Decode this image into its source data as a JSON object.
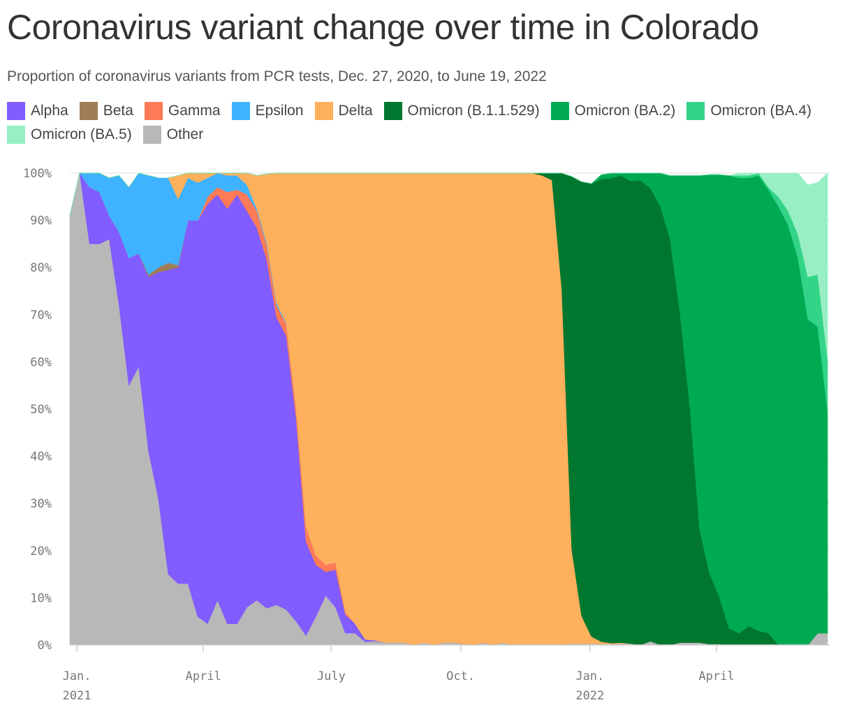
{
  "header": {
    "title": "Coronavirus variant change over time in Colorado",
    "subtitle": "Proportion of coronavirus variants from PCR tests, Dec. 27, 2020, to June 19, 2022"
  },
  "chart_data": {
    "type": "area",
    "stacked": true,
    "title": "Coronavirus variant change over time in Colorado",
    "subtitle": "Proportion of coronavirus variants from PCR tests, Dec. 27, 2020, to June 19, 2022",
    "xlabel": "",
    "ylabel": "",
    "ylim": [
      0,
      100
    ],
    "grid": true,
    "legend_position": "top",
    "x_ticks": [
      {
        "date": "2021-01-01",
        "label": "Jan.",
        "year": "2021"
      },
      {
        "date": "2021-04-01",
        "label": "April",
        "year": ""
      },
      {
        "date": "2021-07-01",
        "label": "July",
        "year": ""
      },
      {
        "date": "2021-10-01",
        "label": "Oct.",
        "year": ""
      },
      {
        "date": "2022-01-01",
        "label": "Jan.",
        "year": "2022"
      },
      {
        "date": "2022-04-01",
        "label": "April",
        "year": ""
      }
    ],
    "y_ticks": [
      {
        "value": 0,
        "label": "0%"
      },
      {
        "value": 10,
        "label": "10%"
      },
      {
        "value": 20,
        "label": "20%"
      },
      {
        "value": 30,
        "label": "30%"
      },
      {
        "value": 40,
        "label": "40%"
      },
      {
        "value": 50,
        "label": "50%"
      },
      {
        "value": 60,
        "label": "60%"
      },
      {
        "value": 70,
        "label": "70%"
      },
      {
        "value": 80,
        "label": "80%"
      },
      {
        "value": 90,
        "label": "90%"
      },
      {
        "value": 100,
        "label": "100%"
      }
    ],
    "x": [
      "2020-12-27",
      "2021-01-03",
      "2021-01-10",
      "2021-01-17",
      "2021-01-24",
      "2021-01-31",
      "2021-02-07",
      "2021-02-14",
      "2021-02-21",
      "2021-02-28",
      "2021-03-07",
      "2021-03-14",
      "2021-03-21",
      "2021-03-28",
      "2021-04-04",
      "2021-04-11",
      "2021-04-18",
      "2021-04-25",
      "2021-05-02",
      "2021-05-09",
      "2021-05-16",
      "2021-05-23",
      "2021-05-30",
      "2021-06-06",
      "2021-06-13",
      "2021-06-20",
      "2021-06-27",
      "2021-07-04",
      "2021-07-11",
      "2021-07-18",
      "2021-07-25",
      "2021-08-01",
      "2021-08-08",
      "2021-08-15",
      "2021-08-22",
      "2021-08-29",
      "2021-09-05",
      "2021-09-12",
      "2021-09-19",
      "2021-09-26",
      "2021-10-03",
      "2021-10-10",
      "2021-10-17",
      "2021-10-24",
      "2021-10-31",
      "2021-11-07",
      "2021-11-14",
      "2021-11-21",
      "2021-11-28",
      "2021-12-05",
      "2021-12-12",
      "2021-12-19",
      "2021-12-26",
      "2022-01-02",
      "2022-01-09",
      "2022-01-16",
      "2022-01-23",
      "2022-01-30",
      "2022-02-06",
      "2022-02-13",
      "2022-02-20",
      "2022-02-27",
      "2022-03-06",
      "2022-03-13",
      "2022-03-20",
      "2022-03-27",
      "2022-04-03",
      "2022-04-10",
      "2022-04-17",
      "2022-04-24",
      "2022-05-01",
      "2022-05-08",
      "2022-05-15",
      "2022-05-22",
      "2022-05-29",
      "2022-06-05",
      "2022-06-12",
      "2022-06-19"
    ],
    "series": [
      {
        "name": "Other",
        "color": "#b8b8b8",
        "values": [
          91,
          100,
          85,
          85,
          86,
          72,
          55,
          59,
          41,
          31,
          15,
          13,
          13,
          6,
          4.5,
          9.5,
          4.5,
          4.5,
          8,
          9.5,
          7.8,
          8.5,
          7.5,
          5,
          2,
          6,
          10.5,
          8,
          2.5,
          2.5,
          0.7,
          0.8,
          0.5,
          0.5,
          0.5,
          0,
          0.5,
          0,
          0.5,
          0.5,
          0.2,
          0,
          0.5,
          0,
          0.5,
          0,
          0,
          0,
          0,
          0,
          0.1,
          0.3,
          0.2,
          0.3,
          0.2,
          0.2,
          0.3,
          0.3,
          0,
          0.8,
          0,
          0,
          0.5,
          0.5,
          0.5,
          0.2,
          0.2,
          0,
          0,
          0,
          0,
          0,
          0,
          0,
          0,
          0,
          2.5,
          2.5
        ]
      },
      {
        "name": "Alpha",
        "color": "#815cff",
        "values": [
          0,
          0,
          12,
          11,
          5,
          15.5,
          27,
          24,
          37,
          48,
          64.5,
          67,
          77,
          84,
          89,
          86,
          88,
          91,
          84,
          79,
          74,
          61,
          58,
          43,
          20,
          11,
          5,
          8,
          4,
          2,
          0.5,
          0.2,
          0,
          0,
          0,
          0,
          0,
          0,
          0,
          0,
          0,
          0,
          0,
          0,
          0,
          0,
          0,
          0,
          0,
          0,
          0,
          0,
          0,
          0,
          0,
          0,
          0,
          0,
          0,
          0,
          0,
          0,
          0,
          0,
          0,
          0,
          0,
          0,
          0,
          0,
          0,
          0,
          0,
          0,
          0,
          0,
          0,
          0
        ]
      },
      {
        "name": "Beta",
        "color": "#a07c58",
        "values": [
          0,
          0,
          0,
          0,
          0,
          0,
          0,
          0,
          0.5,
          1,
          1.5,
          0.5,
          0,
          0,
          0,
          0,
          0,
          0,
          0,
          0,
          0,
          0,
          0,
          0,
          0,
          0,
          0,
          0,
          0,
          0,
          0,
          0,
          0,
          0,
          0,
          0,
          0,
          0,
          0,
          0,
          0,
          0,
          0,
          0,
          0,
          0,
          0,
          0,
          0,
          0,
          0,
          0,
          0,
          0,
          0,
          0,
          0,
          0,
          0,
          0,
          0,
          0,
          0,
          0,
          0,
          0,
          0,
          0,
          0,
          0,
          0,
          0,
          0,
          0,
          0,
          0,
          0,
          0
        ]
      },
      {
        "name": "Gamma",
        "color": "#ff7a57",
        "values": [
          0,
          0,
          0,
          0,
          0,
          0,
          0,
          0,
          0,
          0,
          0,
          0,
          0,
          0,
          1.5,
          1.5,
          3.5,
          1,
          3.5,
          3.5,
          3,
          2.5,
          2.5,
          2,
          3,
          2,
          1.5,
          1.5,
          0.5,
          0,
          0,
          0,
          0,
          0,
          0,
          0,
          0,
          0,
          0,
          0,
          0,
          0,
          0,
          0,
          0,
          0,
          0,
          0,
          0,
          0,
          0,
          0,
          0,
          0,
          0,
          0,
          0,
          0,
          0,
          0,
          0,
          0,
          0,
          0,
          0,
          0,
          0,
          0,
          0,
          0,
          0,
          0,
          0,
          0,
          0,
          0,
          0,
          0
        ]
      },
      {
        "name": "Epsilon",
        "color": "#3fb3ff",
        "values": [
          0,
          0,
          3,
          4,
          8,
          12,
          15,
          17,
          21,
          19,
          18,
          14,
          9,
          8,
          4,
          3,
          3.5,
          3,
          2,
          0.5,
          0.5,
          0.5,
          0.2,
          0,
          0,
          0,
          0,
          0,
          0,
          0,
          0,
          0,
          0,
          0,
          0,
          0,
          0,
          0,
          0,
          0,
          0,
          0,
          0,
          0,
          0,
          0,
          0,
          0,
          0,
          0,
          0,
          0,
          0,
          0,
          0,
          0,
          0,
          0,
          0,
          0,
          0,
          0,
          0,
          0,
          0,
          0,
          0,
          0,
          0,
          0,
          0,
          0,
          0,
          0,
          0,
          0,
          0,
          0
        ]
      },
      {
        "name": "Delta",
        "color": "#ffb05c",
        "values": [
          0,
          0,
          0,
          0,
          0,
          0,
          0,
          0,
          0,
          0,
          0,
          5,
          1,
          2,
          1,
          0,
          1,
          1,
          2.5,
          7,
          14.5,
          27.5,
          31.8,
          50,
          75,
          81,
          83,
          82.5,
          93,
          95.5,
          98.8,
          99,
          99.5,
          99.5,
          99.5,
          100,
          99.5,
          100,
          99.5,
          99.5,
          99.8,
          100,
          99.5,
          100,
          99.5,
          100,
          100,
          100,
          99.5,
          98.5,
          75,
          20,
          6,
          1.5,
          0.5,
          0.2,
          0.2,
          0,
          0,
          0,
          0,
          0,
          0,
          0,
          0,
          0,
          0,
          0,
          0,
          0,
          0,
          0,
          0,
          0,
          0,
          0,
          0,
          0
        ]
      },
      {
        "name": "Omicron (B.1.1.529)",
        "color": "#00772f",
        "values": [
          0,
          0,
          0,
          0,
          0,
          0,
          0,
          0,
          0,
          0,
          0,
          0,
          0,
          0,
          0,
          0,
          0,
          0,
          0,
          0,
          0,
          0,
          0,
          0,
          0,
          0,
          0,
          0,
          0,
          0,
          0,
          0,
          0,
          0,
          0,
          0,
          0,
          0,
          0,
          0,
          0,
          0,
          0,
          0,
          0,
          0,
          0,
          0,
          0.5,
          1.5,
          25,
          79,
          92,
          96,
          98,
          98.5,
          99,
          98,
          98.5,
          96,
          93,
          86,
          70,
          50,
          24,
          15,
          10,
          3.5,
          2.5,
          4,
          3,
          2.5,
          0,
          0,
          0,
          0,
          0,
          0
        ]
      },
      {
        "name": "Omicron (BA.2)",
        "color": "#00aa53",
        "values": [
          0,
          0,
          0,
          0,
          0,
          0,
          0,
          0,
          0,
          0,
          0,
          0,
          0,
          0,
          0,
          0,
          0,
          0,
          0,
          0,
          0,
          0,
          0,
          0,
          0,
          0,
          0,
          0,
          0,
          0,
          0,
          0,
          0,
          0,
          0,
          0,
          0,
          0,
          0,
          0,
          0,
          0,
          0,
          0,
          0,
          0,
          0,
          0,
          0,
          0,
          0,
          0,
          0,
          0,
          1,
          1.3,
          0.8,
          1.7,
          1.5,
          3.2,
          7,
          13.5,
          29,
          49,
          75,
          84.5,
          89.5,
          96,
          96.5,
          95,
          96.5,
          94,
          93,
          89,
          82,
          69,
          65,
          47
        ]
      },
      {
        "name": "Omicron (BA.4)",
        "color": "#33d487",
        "values": [
          0,
          0,
          0,
          0,
          0,
          0,
          0,
          0,
          0,
          0,
          0,
          0,
          0,
          0,
          0,
          0,
          0,
          0,
          0,
          0,
          0,
          0,
          0,
          0,
          0,
          0,
          0,
          0,
          0,
          0,
          0,
          0,
          0,
          0,
          0,
          0,
          0,
          0,
          0,
          0,
          0,
          0,
          0,
          0,
          0,
          0,
          0,
          0,
          0,
          0,
          0,
          0,
          0,
          0,
          0,
          0,
          0,
          0,
          0,
          0,
          0,
          0,
          0,
          0,
          0,
          0,
          0,
          0,
          0.5,
          0.5,
          0.5,
          0.5,
          2,
          3,
          5,
          9,
          11,
          11
        ]
      },
      {
        "name": "Omicron (BA.5)",
        "color": "#98efc3",
        "values": [
          0,
          0,
          0,
          0,
          0,
          0,
          0,
          0,
          0,
          0,
          0,
          0,
          0,
          0,
          0,
          0,
          0,
          0,
          0,
          0,
          0,
          0,
          0,
          0,
          0,
          0,
          0,
          0,
          0,
          0,
          0,
          0,
          0,
          0,
          0,
          0,
          0,
          0,
          0,
          0,
          0,
          0,
          0,
          0,
          0,
          0,
          0,
          0,
          0,
          0,
          0,
          0,
          0,
          0,
          0,
          0,
          0,
          0,
          0,
          0,
          0,
          0,
          0,
          0,
          0,
          0,
          0,
          0,
          0.5,
          0.5,
          0,
          3,
          5,
          8,
          13,
          19.5,
          19.5,
          39.5
        ]
      }
    ]
  }
}
